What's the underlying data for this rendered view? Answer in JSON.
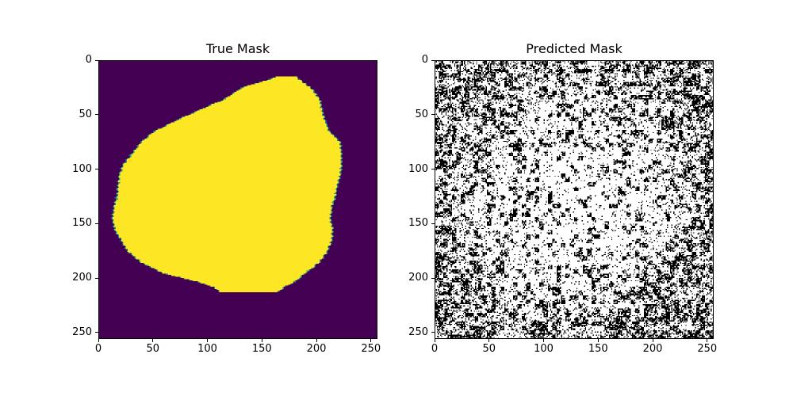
{
  "chart_data": [
    {
      "type": "heatmap",
      "title": "True Mask",
      "colormap": "viridis",
      "colors": {
        "background": "#440154",
        "foreground": "#fde725",
        "edge": "#21918c"
      },
      "xlim": [
        0,
        256
      ],
      "ylim": [
        256,
        0
      ],
      "xticks": [
        0,
        50,
        100,
        150,
        200,
        250
      ],
      "yticks": [
        0,
        50,
        100,
        150,
        200,
        250
      ],
      "mask_outline_rows": [
        [
          15,
          162,
          182
        ],
        [
          25,
          130,
          195
        ],
        [
          35,
          115,
          203
        ],
        [
          45,
          92,
          205
        ],
        [
          55,
          70,
          208
        ],
        [
          65,
          50,
          212
        ],
        [
          75,
          38,
          222
        ],
        [
          85,
          30,
          223
        ],
        [
          95,
          22,
          223
        ],
        [
          105,
          18,
          222
        ],
        [
          115,
          17,
          219
        ],
        [
          125,
          16,
          217
        ],
        [
          135,
          13,
          214
        ],
        [
          145,
          12,
          213
        ],
        [
          155,
          14,
          215
        ],
        [
          165,
          20,
          214
        ],
        [
          175,
          26,
          210
        ],
        [
          185,
          38,
          203
        ],
        [
          195,
          58,
          190
        ],
        [
          203,
          90,
          180
        ],
        [
          208,
          105,
          170
        ],
        [
          212,
          110,
          165
        ]
      ]
    },
    {
      "type": "heatmap",
      "title": "Predicted Mask",
      "colormap": "binary",
      "colors": {
        "on": "#ffffff",
        "off": "#000000"
      },
      "xlim": [
        0,
        256
      ],
      "ylim": [
        256,
        0
      ],
      "xticks": [
        0,
        50,
        100,
        150,
        200,
        250
      ],
      "yticks": [
        0,
        50,
        100,
        150,
        200,
        250
      ],
      "noise_center_density": 0.12,
      "noise_edge_density": 0.55
    }
  ]
}
